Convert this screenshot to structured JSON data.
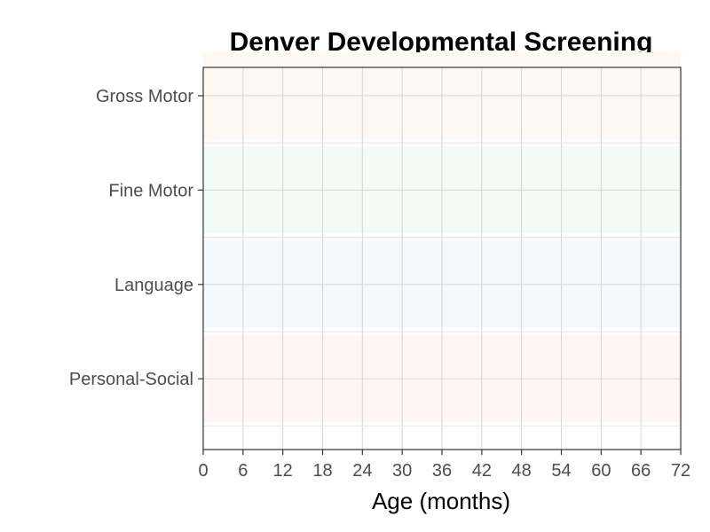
{
  "chart_data": {
    "type": "bar",
    "title": "Denver Developmental Screening",
    "xlabel": "Age (months)",
    "ylabel": "",
    "orientation": "horizontal",
    "categories": [
      "Gross Motor",
      "Fine Motor",
      "Language",
      "Personal-Social"
    ],
    "band_colors": [
      "#fff8f2",
      "#f2fbf5",
      "#f3f8fc",
      "#fff5f5"
    ],
    "xlim": [
      0,
      72
    ],
    "x_ticks": [
      0,
      6,
      12,
      18,
      24,
      30,
      36,
      42,
      48,
      54,
      60,
      66,
      72
    ],
    "grid": true,
    "series": []
  }
}
